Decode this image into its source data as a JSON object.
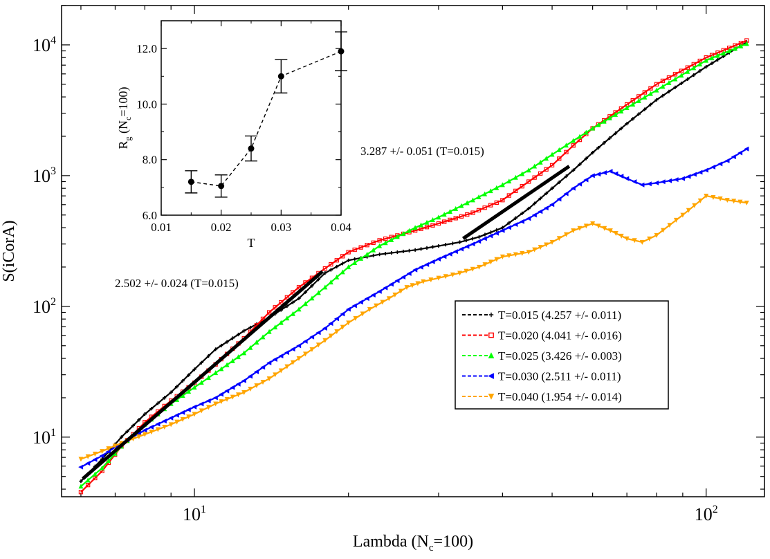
{
  "chart_data": [
    {
      "type": "line",
      "scale": "log-log",
      "title": "",
      "xlabel": "Lambda (N",
      "xlabel_sub": "c",
      "xlabel_tail": "=100)",
      "ylabel": "S(iCorA)",
      "xlim": [
        5.5,
        130
      ],
      "ylim": [
        3.5,
        20000
      ],
      "x_ticks": [
        {
          "value": 10,
          "base": "10",
          "exp": "1"
        },
        {
          "value": 100,
          "base": "10",
          "exp": "2"
        }
      ],
      "y_ticks": [
        {
          "value": 10,
          "base": "10",
          "exp": "1"
        },
        {
          "value": 100,
          "base": "10",
          "exp": "2"
        },
        {
          "value": 1000,
          "base": "10",
          "exp": "3"
        },
        {
          "value": 10000,
          "base": "10",
          "exp": "4"
        }
      ],
      "legend_position": "lower-right",
      "series": [
        {
          "name": "T=0.015 (4.257 +/- 0.011)",
          "color": "#000000",
          "marker": "plus",
          "x": [
            6,
            6.6,
            7.2,
            8,
            9,
            10,
            11,
            12.5,
            14,
            16,
            18,
            20,
            23,
            27,
            30,
            33,
            36,
            40,
            45,
            50,
            55,
            60,
            70,
            80,
            100,
            120
          ],
          "y": [
            4.6,
            6.8,
            10,
            15,
            22,
            33,
            47,
            65,
            82,
            115,
            180,
            225,
            250,
            270,
            290,
            310,
            340,
            400,
            560,
            800,
            1100,
            1500,
            2500,
            3800,
            6800,
            10500
          ]
        },
        {
          "name": "T=0.020 (4.041 +/- 0.016)",
          "color": "#ff0000",
          "marker": "square",
          "x": [
            6,
            6.6,
            7.2,
            8,
            9,
            10,
            11,
            12.5,
            14,
            16,
            18,
            20,
            23,
            27,
            30,
            35,
            40,
            45,
            50,
            55,
            60,
            70,
            80,
            100,
            120
          ],
          "y": [
            3.8,
            5.5,
            8.5,
            13,
            19,
            26,
            36,
            57,
            90,
            140,
            195,
            260,
            320,
            380,
            430,
            520,
            650,
            900,
            1200,
            1700,
            2300,
            3500,
            5000,
            8000,
            10800
          ]
        },
        {
          "name": "T=0.025 (3.426 +/- 0.003)",
          "color": "#00ff00",
          "marker": "triangle-up",
          "x": [
            6,
            6.6,
            7.2,
            8,
            9,
            10,
            11,
            12.5,
            14,
            16,
            18,
            20,
            23,
            27,
            30,
            35,
            40,
            45,
            50,
            55,
            60,
            70,
            80,
            100,
            120
          ],
          "y": [
            4.2,
            5.8,
            8.5,
            12.5,
            18,
            24,
            31,
            44,
            64,
            95,
            140,
            200,
            290,
            400,
            480,
            650,
            850,
            1100,
            1450,
            1850,
            2300,
            3300,
            4500,
            7600,
            10200
          ]
        },
        {
          "name": "T=0.030 (2.511 +/- 0.011)",
          "color": "#0000ff",
          "marker": "triangle-left",
          "x": [
            6,
            6.6,
            7.2,
            8,
            9,
            10,
            11,
            12.5,
            14,
            16,
            18,
            20,
            23,
            27,
            30,
            35,
            40,
            45,
            50,
            55,
            60,
            65,
            70,
            75,
            80,
            90,
            100,
            110,
            120
          ],
          "y": [
            5.9,
            7.2,
            9,
            11.3,
            14,
            17,
            20,
            27,
            37,
            50,
            68,
            95,
            130,
            190,
            230,
            300,
            380,
            470,
            600,
            800,
            1000,
            1080,
            950,
            850,
            880,
            950,
            1100,
            1300,
            1600
          ]
        },
        {
          "name": "T=0.040 (1.954 +/- 0.014)",
          "color": "#ffa500",
          "marker": "triangle-down",
          "x": [
            6,
            6.6,
            7.2,
            8,
            9,
            10,
            11,
            12.5,
            14,
            16,
            18,
            20,
            22,
            24,
            26,
            28,
            30,
            33,
            36,
            40,
            45,
            50,
            55,
            60,
            65,
            70,
            75,
            80,
            90,
            100,
            110,
            120
          ],
          "y": [
            6.8,
            7.8,
            9,
            10.5,
            12.5,
            15,
            18,
            22,
            28,
            40,
            55,
            75,
            95,
            115,
            140,
            155,
            165,
            180,
            200,
            240,
            260,
            310,
            380,
            430,
            380,
            330,
            310,
            350,
            500,
            700,
            650,
            620
          ]
        }
      ],
      "annotations": [
        {
          "text": "3.287 +/- 0.051 (T=0.015)"
        },
        {
          "text": "2.502 +/- 0.024 (T=0.015)"
        }
      ]
    },
    {
      "type": "line",
      "title": "",
      "xlabel": "T",
      "ylabel_main": "R",
      "ylabel_sub": "g",
      "ylabel_mid": " (N",
      "ylabel_sub2": "c",
      "ylabel_tail": "=100)",
      "xlim": [
        0.01,
        0.04
      ],
      "ylim": [
        6.0,
        13.0
      ],
      "x_ticks": [
        "0.01",
        "0.02",
        "0.03",
        "0.04"
      ],
      "y_ticks": [
        "6.0",
        "8.0",
        "10.0",
        "12.0"
      ],
      "series": [
        {
          "name": "Rg",
          "color": "#000000",
          "x": [
            0.015,
            0.02,
            0.025,
            0.03,
            0.04
          ],
          "y": [
            7.2,
            7.05,
            8.4,
            11.0,
            11.9
          ],
          "err": [
            0.4,
            0.4,
            0.45,
            0.6,
            0.7
          ]
        }
      ]
    }
  ]
}
